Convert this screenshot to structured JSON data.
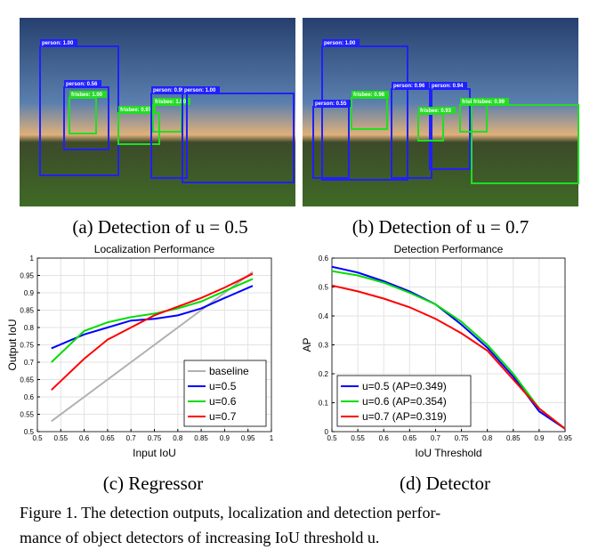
{
  "photos": [
    {
      "labels": [
        "person: 1.00",
        "person: 0.56",
        "frisbee: 1.00",
        "frisbee: 0.97",
        "frisbee: 1.00",
        "person: 0.99",
        "person: 1.00"
      ]
    },
    {
      "labels": [
        "person: 1.00",
        "person: 0.55",
        "frisbee: 0.98",
        "person: 0.96",
        "person: 0.94",
        "frisbee: 0.99",
        "frisbee: 0.93",
        "frisbee: 0.99"
      ]
    }
  ],
  "captions": [
    "(a) Detection of u = 0.5",
    "(b) Detection of u = 0.7",
    "(c) Regressor",
    "(d) Detector"
  ],
  "figure_caption": [
    "Figure 1. The detection outputs, localization and detection perfor-",
    "mance of object detectors of increasing IoU threshold u."
  ],
  "chart_data": [
    {
      "type": "line",
      "title": "Localization Performance",
      "x_label": "Input IoU",
      "y_label": "Output IoU",
      "x": [
        0.53,
        0.6,
        0.65,
        0.7,
        0.75,
        0.8,
        0.85,
        0.9,
        0.96
      ],
      "series": [
        {
          "name": "baseline",
          "color": "#b0b0b0",
          "values": [
            0.53,
            0.6,
            0.65,
            0.7,
            0.75,
            0.8,
            0.85,
            0.9,
            0.96
          ]
        },
        {
          "name": "u=0.5",
          "color": "#0000ff",
          "values": [
            0.74,
            0.78,
            0.8,
            0.82,
            0.825,
            0.835,
            0.855,
            0.885,
            0.92
          ]
        },
        {
          "name": "u=0.6",
          "color": "#00dd00",
          "values": [
            0.7,
            0.79,
            0.815,
            0.83,
            0.84,
            0.855,
            0.875,
            0.905,
            0.94
          ]
        },
        {
          "name": "u=0.7",
          "color": "#ff0000",
          "values": [
            0.62,
            0.71,
            0.765,
            0.8,
            0.835,
            0.86,
            0.885,
            0.915,
            0.955
          ]
        }
      ],
      "xlim": [
        0.5,
        1
      ],
      "xticks": [
        0.5,
        0.55,
        0.6,
        0.65,
        0.7,
        0.75,
        0.8,
        0.85,
        0.9,
        0.95,
        1
      ],
      "ylim": [
        0.5,
        1
      ],
      "yticks": [
        0.5,
        0.55,
        0.6,
        0.65,
        0.7,
        0.75,
        0.8,
        0.85,
        0.9,
        0.95,
        1
      ],
      "grid": true,
      "legend": "lower right"
    },
    {
      "type": "line",
      "title": "Detection Performance",
      "x_label": "IoU Threshold",
      "y_label": "AP",
      "x": [
        0.5,
        0.55,
        0.6,
        0.65,
        0.7,
        0.75,
        0.8,
        0.85,
        0.9,
        0.95
      ],
      "series": [
        {
          "name": "u=0.5 (AP=0.349)",
          "color": "#0000ff",
          "values": [
            0.57,
            0.55,
            0.52,
            0.485,
            0.44,
            0.37,
            0.29,
            0.19,
            0.07,
            0.01
          ]
        },
        {
          "name": "u=0.6 (AP=0.354)",
          "color": "#00dd00",
          "values": [
            0.555,
            0.54,
            0.515,
            0.48,
            0.44,
            0.38,
            0.3,
            0.2,
            0.08,
            0.01
          ]
        },
        {
          "name": "u=0.7 (AP=0.319)",
          "color": "#ff0000",
          "values": [
            0.505,
            0.485,
            0.46,
            0.43,
            0.39,
            0.34,
            0.28,
            0.18,
            0.08,
            0.01
          ]
        }
      ],
      "xlim": [
        0.5,
        0.95
      ],
      "xticks": [
        0.5,
        0.55,
        0.6,
        0.65,
        0.7,
        0.75,
        0.8,
        0.85,
        0.9,
        0.95
      ],
      "ylim": [
        0,
        0.6
      ],
      "yticks": [
        0,
        0.1,
        0.2,
        0.3,
        0.4,
        0.5,
        0.6
      ],
      "grid": true,
      "legend": "lower left"
    }
  ]
}
